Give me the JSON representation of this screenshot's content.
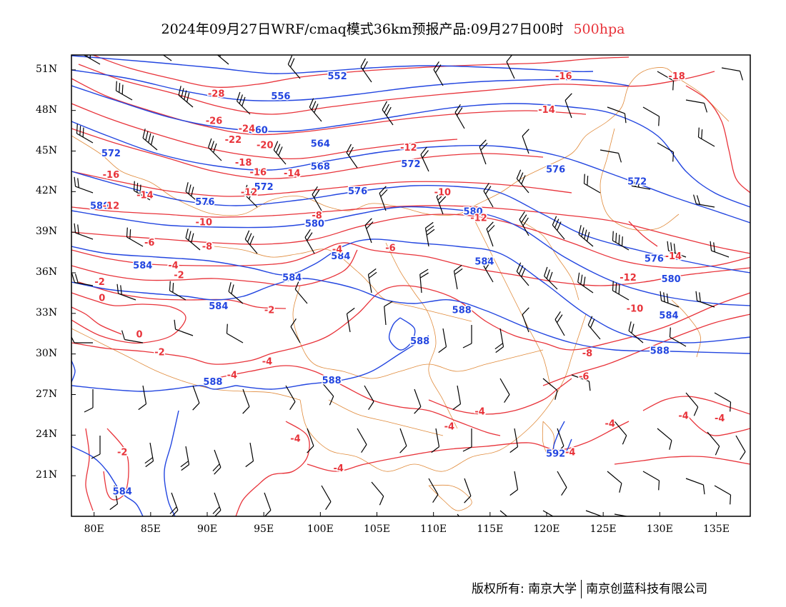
{
  "header": {
    "title": "2024年09月27日WRF/cmaq模式36km预报产品:09月27日00时",
    "level": "500hpa"
  },
  "colors": {
    "height_contour": "#2346e0",
    "temperature_contour": "#e8333a",
    "province_border": "#e08a3a",
    "wind_barb": "#000000"
  },
  "axes": {
    "lat_labels": [
      "51N",
      "48N",
      "45N",
      "42N",
      "39N",
      "36N",
      "33N",
      "30N",
      "27N",
      "24N",
      "21N"
    ],
    "lon_labels": [
      "80E",
      "85E",
      "90E",
      "95E",
      "100E",
      "105E",
      "110E",
      "115E",
      "120E",
      "125E",
      "130E",
      "135E"
    ]
  },
  "height_labels": [
    {
      "text": "552",
      "lon": 101.5,
      "lat": 50.5
    },
    {
      "text": "556",
      "lon": 96.5,
      "lat": 49.0
    },
    {
      "text": "560",
      "lon": 94.5,
      "lat": 46.5
    },
    {
      "text": "564",
      "lon": 100.0,
      "lat": 45.5
    },
    {
      "text": "568",
      "lon": 100.0,
      "lat": 43.8
    },
    {
      "text": "572",
      "lon": 81.5,
      "lat": 44.8
    },
    {
      "text": "572",
      "lon": 95.0,
      "lat": 42.3
    },
    {
      "text": "572",
      "lon": 108.0,
      "lat": 44.0
    },
    {
      "text": "572",
      "lon": 128.0,
      "lat": 42.7
    },
    {
      "text": "576",
      "lon": 89.8,
      "lat": 41.2
    },
    {
      "text": "576",
      "lon": 103.3,
      "lat": 42.0
    },
    {
      "text": "576",
      "lon": 120.8,
      "lat": 43.6
    },
    {
      "text": "576",
      "lon": 129.5,
      "lat": 37.0
    },
    {
      "text": "580",
      "lon": 80.5,
      "lat": 40.9
    },
    {
      "text": "580",
      "lon": 99.5,
      "lat": 39.6
    },
    {
      "text": "580",
      "lon": 113.5,
      "lat": 40.5
    },
    {
      "text": "580",
      "lon": 131.0,
      "lat": 35.5
    },
    {
      "text": "584",
      "lon": 84.3,
      "lat": 36.5
    },
    {
      "text": "584",
      "lon": 97.5,
      "lat": 35.6
    },
    {
      "text": "584",
      "lon": 101.8,
      "lat": 37.2
    },
    {
      "text": "584",
      "lon": 91.0,
      "lat": 33.5
    },
    {
      "text": "584",
      "lon": 114.5,
      "lat": 36.8
    },
    {
      "text": "584",
      "lon": 130.8,
      "lat": 32.8
    },
    {
      "text": "588",
      "lon": 112.5,
      "lat": 33.2
    },
    {
      "text": "588",
      "lon": 108.8,
      "lat": 30.9
    },
    {
      "text": "588",
      "lon": 101.0,
      "lat": 28.0
    },
    {
      "text": "588",
      "lon": 130.0,
      "lat": 30.2
    },
    {
      "text": "588",
      "lon": 90.5,
      "lat": 27.9
    },
    {
      "text": "584",
      "lon": 82.5,
      "lat": 19.8
    },
    {
      "text": "592",
      "lon": 120.8,
      "lat": 22.6
    }
  ],
  "temperature_labels": [
    {
      "text": "-28",
      "lon": 90.8,
      "lat": 49.2
    },
    {
      "text": "-26",
      "lon": 90.6,
      "lat": 47.2
    },
    {
      "text": "-24",
      "lon": 93.5,
      "lat": 46.6
    },
    {
      "text": "-22",
      "lon": 92.3,
      "lat": 45.8
    },
    {
      "text": "-20",
      "lon": 95.1,
      "lat": 45.4
    },
    {
      "text": "-18",
      "lon": 93.2,
      "lat": 44.1
    },
    {
      "text": "-16",
      "lon": 94.5,
      "lat": 43.4
    },
    {
      "text": "-14",
      "lon": 97.5,
      "lat": 43.3
    },
    {
      "text": "-16",
      "lon": 81.5,
      "lat": 43.2
    },
    {
      "text": "-14",
      "lon": 84.5,
      "lat": 41.7
    },
    {
      "text": "-12",
      "lon": 81.5,
      "lat": 40.9
    },
    {
      "text": "-12",
      "lon": 93.7,
      "lat": 41.9
    },
    {
      "text": "-12",
      "lon": 107.8,
      "lat": 45.2
    },
    {
      "text": "-10",
      "lon": 89.7,
      "lat": 39.7
    },
    {
      "text": "-10",
      "lon": 110.8,
      "lat": 41.9
    },
    {
      "text": "-8",
      "lon": 99.7,
      "lat": 40.2
    },
    {
      "text": "-8",
      "lon": 90.0,
      "lat": 37.9
    },
    {
      "text": "-6",
      "lon": 84.9,
      "lat": 38.2
    },
    {
      "text": "-6",
      "lon": 106.2,
      "lat": 37.8
    },
    {
      "text": "-4",
      "lon": 101.5,
      "lat": 37.7
    },
    {
      "text": "-4",
      "lon": 87.0,
      "lat": 36.5
    },
    {
      "text": "-2",
      "lon": 87.5,
      "lat": 35.8
    },
    {
      "text": "-2",
      "lon": 80.5,
      "lat": 35.3
    },
    {
      "text": "-2",
      "lon": 95.5,
      "lat": 33.2
    },
    {
      "text": "0",
      "lon": 80.7,
      "lat": 34.1
    },
    {
      "text": "0",
      "lon": 84.0,
      "lat": 31.4
    },
    {
      "text": "-2",
      "lon": 85.8,
      "lat": 30.1
    },
    {
      "text": "-4",
      "lon": 92.2,
      "lat": 28.4
    },
    {
      "text": "-4",
      "lon": 95.3,
      "lat": 29.4
    },
    {
      "text": "-2",
      "lon": 82.5,
      "lat": 22.7
    },
    {
      "text": "-4",
      "lon": 97.8,
      "lat": 23.7
    },
    {
      "text": "-4",
      "lon": 101.6,
      "lat": 21.5
    },
    {
      "text": "-4",
      "lon": 114.1,
      "lat": 25.7
    },
    {
      "text": "-4",
      "lon": 111.4,
      "lat": 24.6
    },
    {
      "text": "-4",
      "lon": 122.1,
      "lat": 22.7
    },
    {
      "text": "-4",
      "lon": 125.6,
      "lat": 24.8
    },
    {
      "text": "-4",
      "lon": 132.1,
      "lat": 25.4
    },
    {
      "text": "-4",
      "lon": 135.3,
      "lat": 25.2
    },
    {
      "text": "-6",
      "lon": 123.3,
      "lat": 28.3
    },
    {
      "text": "-8",
      "lon": 123.6,
      "lat": 30.0
    },
    {
      "text": "-10",
      "lon": 127.8,
      "lat": 33.3
    },
    {
      "text": "-12",
      "lon": 127.2,
      "lat": 35.6
    },
    {
      "text": "-12",
      "lon": 114.0,
      "lat": 40.0
    },
    {
      "text": "-14",
      "lon": 120.0,
      "lat": 48.0
    },
    {
      "text": "-14",
      "lon": 131.2,
      "lat": 37.2
    },
    {
      "text": "-16",
      "lon": 121.5,
      "lat": 50.5
    },
    {
      "text": "-18",
      "lon": 131.5,
      "lat": 50.5
    }
  ],
  "footer": {
    "copyright": "版权所有: 南京大学",
    "company": "南京创蓝科技有限公司"
  }
}
